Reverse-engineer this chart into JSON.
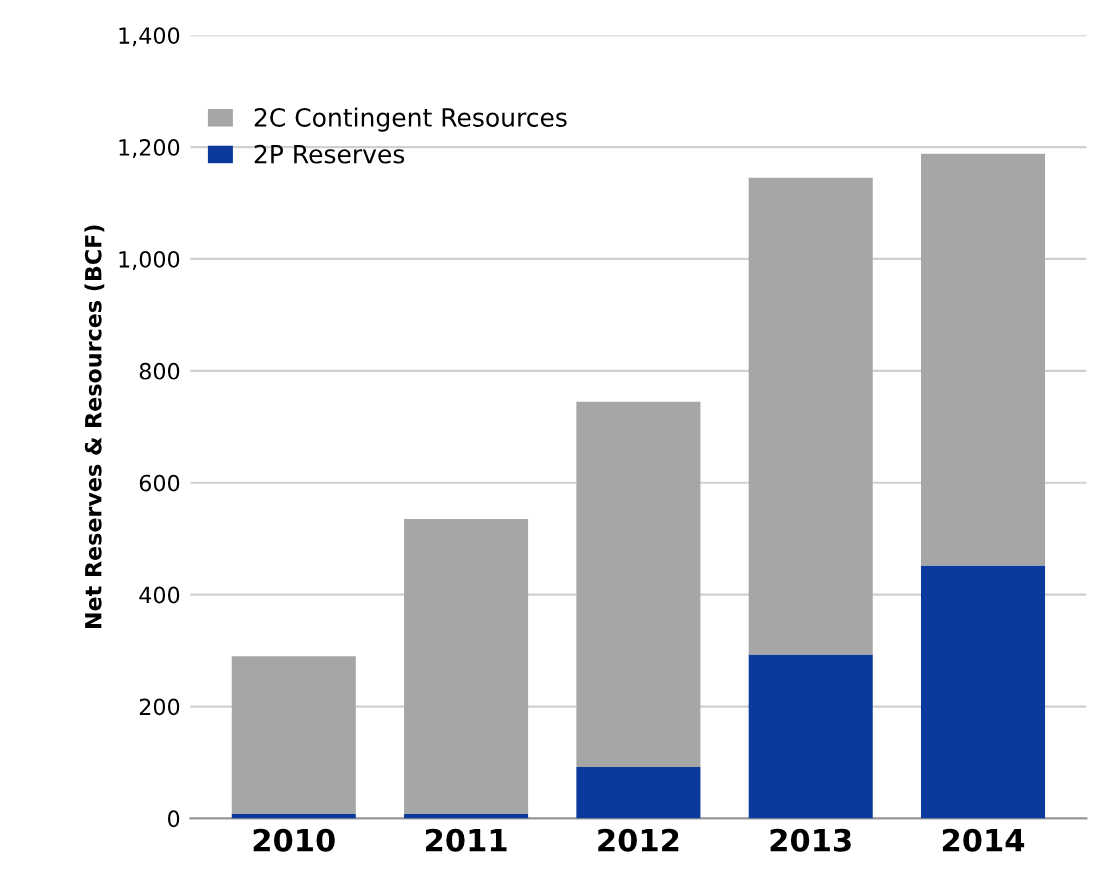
{
  "chart_data": {
    "type": "bar",
    "stacked": true,
    "ylabel": "Net Reserves & Resources (BCF)",
    "categories": [
      "2010",
      "2011",
      "2012",
      "2013",
      "2014"
    ],
    "series": [
      {
        "name": "2P Reserves",
        "color": "#0b3a9c",
        "values": [
          8,
          8,
          92,
          293,
          452
        ]
      },
      {
        "name": "2C Contingent Resources",
        "color": "#a6a6a6",
        "values": [
          282,
          527,
          653,
          852,
          736
        ]
      }
    ],
    "ylim": [
      0,
      1400
    ],
    "yticks": [
      0,
      {
        "value": 200,
        "label": "200"
      },
      {
        "value": 400,
        "label": "400"
      },
      {
        "value": 600,
        "label": "600"
      },
      {
        "value": 800,
        "label": "800"
      },
      {
        "value": 1000,
        "label": "1,000"
      },
      {
        "value": 1200,
        "label": "1,200"
      },
      {
        "value": 1400,
        "label": "1,400"
      }
    ],
    "grid": "y",
    "legend": "top left"
  }
}
